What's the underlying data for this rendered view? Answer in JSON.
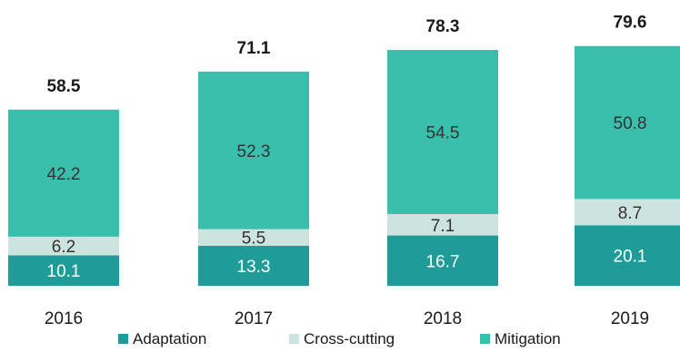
{
  "chart_data": {
    "type": "bar",
    "stacked": true,
    "categories": [
      "2016",
      "2017",
      "2018",
      "2019"
    ],
    "series": [
      {
        "name": "Adaptation",
        "values": [
          10.1,
          13.3,
          16.7,
          20.1
        ],
        "color": "#1f9c98",
        "label_color": "#ffffff"
      },
      {
        "name": "Cross-cutting",
        "values": [
          6.2,
          5.5,
          7.1,
          8.7
        ],
        "color": "#cde3de",
        "label_color": "#333333"
      },
      {
        "name": "Mitigation",
        "values": [
          42.2,
          52.3,
          54.5,
          50.8
        ],
        "color": "#3bbfad",
        "label_color": "#333333"
      }
    ],
    "totals": [
      "58.5",
      "71.1",
      "78.3",
      "79.6"
    ],
    "ylim": [
      0,
      81
    ],
    "grid": false,
    "legend_position": "bottom"
  }
}
